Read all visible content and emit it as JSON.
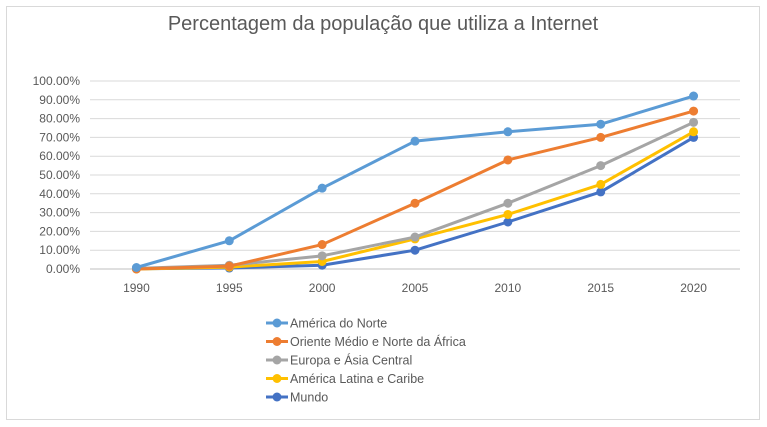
{
  "chart_data": {
    "type": "line",
    "title": "Percentagem da população que utiliza a Internet",
    "x": [
      "1990",
      "1995",
      "2000",
      "2005",
      "2010",
      "2015",
      "2020"
    ],
    "ylim": [
      0,
      100
    ],
    "yticks": [
      "0.00%",
      "10.00%",
      "20.00%",
      "30.00%",
      "40.00%",
      "50.00%",
      "60.00%",
      "70.00%",
      "80.00%",
      "90.00%",
      "100.00%"
    ],
    "grid": true,
    "legend_position": "bottom",
    "series": [
      {
        "name": "América do Norte",
        "color": "#5b9bd5",
        "values": [
          0.8,
          15,
          43,
          68,
          73,
          77,
          92
        ]
      },
      {
        "name": "Oriente Médio e Norte da África",
        "color": "#ed7d31",
        "values": [
          0,
          1.5,
          13,
          35,
          58,
          70,
          84
        ]
      },
      {
        "name": "Europa e Ásia Central",
        "color": "#a5a5a5",
        "values": [
          0.3,
          2,
          7,
          17,
          35,
          55,
          78
        ]
      },
      {
        "name": "América Latina e Caribe",
        "color": "#ffc000",
        "values": [
          0,
          1,
          4,
          16,
          29,
          45,
          73
        ]
      },
      {
        "name": "Mundo",
        "color": "#4472c4",
        "values": [
          0.1,
          0.5,
          2,
          10,
          25,
          41,
          70
        ]
      }
    ]
  }
}
